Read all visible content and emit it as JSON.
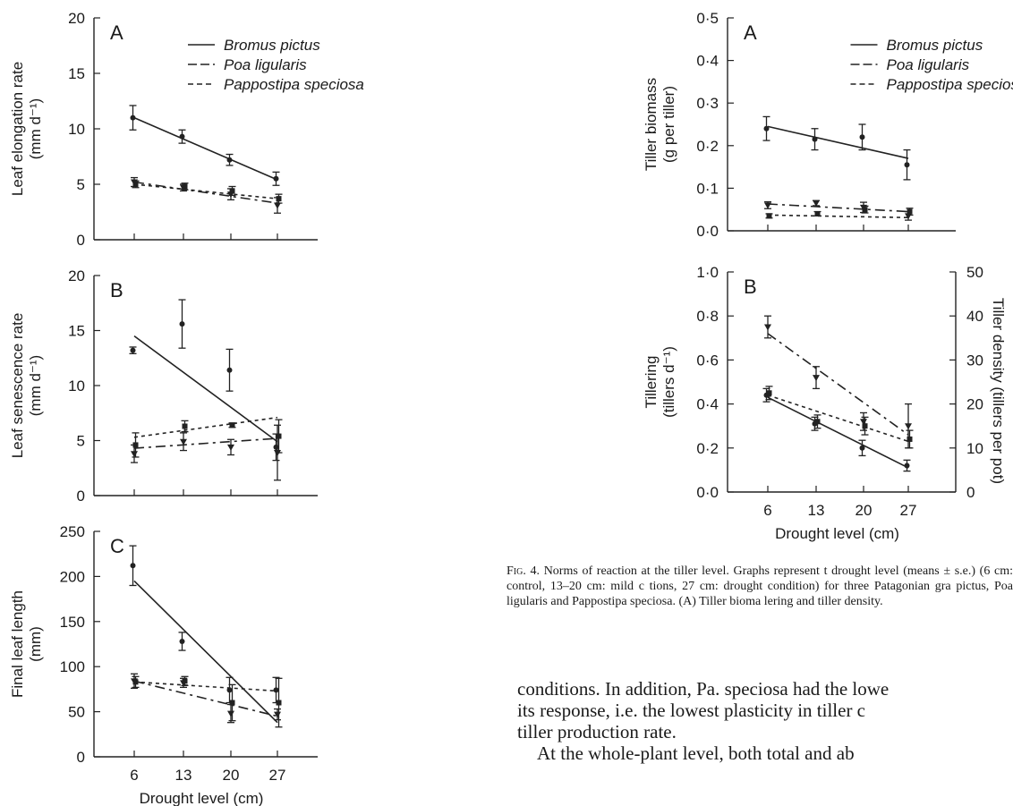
{
  "caption": {
    "fig_label": "Fig. 4.",
    "line1": "Norms of reaction at the tiller level. Graphs represent t",
    "line2": "drought level (means ± s.e.) (6 cm: control, 13–20 cm: mild c",
    "line3": "tions, 27 cm: drought condition) for three Patagonian gra",
    "line4": "pictus, Poa ligularis and Pappostipa speciosa. (A) Tiller bioma",
    "line5": "lering and tiller density."
  },
  "body_text": {
    "line1": "conditions. In addition, Pa. speciosa had the lowe",
    "line2": "its response, i.e. the lowest plasticity in tiller c",
    "line3": "tiller production rate.",
    "line4": "At the whole-plant level, both total and ab"
  },
  "chart_data": [
    {
      "type": "line",
      "panel": "A",
      "ylabel": "Leaf elongation rate (mm d⁻¹)",
      "xlabel": "",
      "x": [
        6,
        13,
        20,
        27
      ],
      "ylim": [
        0,
        20
      ],
      "yticks": [
        "0",
        "5",
        "10",
        "15",
        "20"
      ],
      "legend": [
        "Bromus pictus",
        "Poa ligularis",
        "Pappostipa speciosa"
      ],
      "series": [
        {
          "name": "Bromus pictus",
          "values": [
            11.0,
            9.3,
            7.2,
            5.5
          ],
          "err": [
            1.1,
            0.6,
            0.5,
            0.6
          ],
          "fit": [
            11.0,
            5.4
          ]
        },
        {
          "name": "Poa ligularis",
          "values": [
            5.2,
            4.7,
            4.1,
            3.1
          ],
          "err": [
            0.4,
            0.3,
            0.5,
            0.7
          ],
          "fit": [
            5.2,
            3.3
          ]
        },
        {
          "name": "Pappostipa speciosa",
          "values": [
            5.0,
            4.8,
            4.4,
            3.7
          ],
          "err": [
            0.3,
            0.3,
            0.4,
            0.4
          ],
          "fit": [
            5.0,
            3.7
          ]
        }
      ]
    },
    {
      "type": "line",
      "panel": "B",
      "ylabel": "Leaf senescence rate (mm d⁻¹)",
      "xlabel": "",
      "x": [
        6,
        13,
        20,
        27
      ],
      "ylim": [
        0,
        20
      ],
      "yticks": [
        "0",
        "5",
        "10",
        "15",
        "20"
      ],
      "series": [
        {
          "name": "Bromus pictus",
          "values": [
            13.2,
            15.6,
            11.4,
            4.4
          ],
          "err": [
            0.3,
            2.2,
            1.9,
            1.2
          ],
          "fit": [
            14.5,
            4.9
          ]
        },
        {
          "name": "Poa ligularis",
          "values": [
            3.8,
            4.9,
            4.4,
            3.9
          ],
          "err": [
            0.8,
            0.8,
            0.7,
            2.5
          ],
          "fit": [
            4.3,
            5.2
          ]
        },
        {
          "name": "Pappostipa speciosa",
          "values": [
            4.6,
            6.3,
            6.4,
            5.4
          ],
          "err": [
            1.1,
            0.5,
            0.2,
            1.5
          ],
          "fit": [
            5.3,
            7.1
          ]
        }
      ]
    },
    {
      "type": "line",
      "panel": "C",
      "ylabel": "Final leaf length (mm)",
      "xlabel": "Drought level (cm)",
      "x": [
        6,
        13,
        20,
        27
      ],
      "xticks": [
        "6",
        "13",
        "20",
        "27"
      ],
      "ylim": [
        0,
        250
      ],
      "yticks": [
        "0",
        "50",
        "100",
        "150",
        "200",
        "250"
      ],
      "series": [
        {
          "name": "Bromus pictus",
          "values": [
            212,
            128,
            74,
            74
          ],
          "err": [
            22,
            10,
            14,
            14
          ],
          "fit": [
            195,
            38
          ]
        },
        {
          "name": "Poa ligularis",
          "values": [
            84,
            82,
            48,
            47
          ],
          "err": [
            8,
            5,
            10,
            6
          ],
          "fit": [
            84,
            45
          ]
        },
        {
          "name": "Pappostipa speciosa",
          "values": [
            83,
            84,
            60,
            60
          ],
          "err": [
            6,
            5,
            20,
            27
          ],
          "fit": [
            83,
            73
          ]
        }
      ]
    },
    {
      "type": "line",
      "panel": "A",
      "ylabel": "Tiller biomass (g per tiller)",
      "xlabel": "",
      "x": [
        6,
        13,
        20,
        27
      ],
      "ylim": [
        0,
        0.5
      ],
      "yticks": [
        "0·0",
        "0·1",
        "0·2",
        "0·3",
        "0·4",
        "0·5"
      ],
      "legend": [
        "Bromus pictus",
        "Poa ligularis",
        "Pappostipa speciosa"
      ],
      "series": [
        {
          "name": "Bromus pictus",
          "values": [
            0.24,
            0.215,
            0.22,
            0.155
          ],
          "err": [
            0.028,
            0.025,
            0.03,
            0.035
          ],
          "fit": [
            0.245,
            0.17
          ]
        },
        {
          "name": "Poa ligularis",
          "values": [
            0.06,
            0.065,
            0.055,
            0.035
          ],
          "err": [
            0.008,
            0.006,
            0.012,
            0.01
          ],
          "fit": [
            0.063,
            0.045
          ]
        },
        {
          "name": "Pappostipa speciosa",
          "values": [
            0.035,
            0.04,
            0.05,
            0.045
          ],
          "err": [
            0.005,
            0.005,
            0.008,
            0.008
          ],
          "fit": [
            0.037,
            0.031
          ]
        }
      ]
    },
    {
      "type": "line",
      "panel": "B",
      "ylabel": "Tillering (tillers d⁻¹)",
      "ylabel_right": "Tiller density (tillers per pot)",
      "xlabel": "Drought level (cm)",
      "x": [
        6,
        13,
        20,
        27
      ],
      "xticks": [
        "6",
        "13",
        "20",
        "27"
      ],
      "ylim": [
        0,
        1.0
      ],
      "yticks": [
        "0·0",
        "0·2",
        "0·4",
        "0·6",
        "0·8",
        "1·0"
      ],
      "ylim_right": [
        0,
        50
      ],
      "yticks_right": [
        "0",
        "10",
        "20",
        "30",
        "40",
        "50"
      ],
      "series": [
        {
          "name": "Bromus pictus",
          "values": [
            0.44,
            0.31,
            0.2,
            0.12
          ],
          "err": [
            0.03,
            0.03,
            0.035,
            0.025
          ],
          "fit": [
            0.43,
            0.11
          ]
        },
        {
          "name": "Poa ligularis",
          "values": [
            0.75,
            0.52,
            0.32,
            0.3
          ],
          "err": [
            0.05,
            0.05,
            0.04,
            0.1
          ],
          "fit": [
            0.72,
            0.26
          ]
        },
        {
          "name": "Pappostipa speciosa",
          "values": [
            0.45,
            0.32,
            0.3,
            0.24
          ],
          "err": [
            0.03,
            0.03,
            0.04,
            0.04
          ],
          "fit": [
            0.44,
            0.23
          ]
        }
      ]
    }
  ]
}
